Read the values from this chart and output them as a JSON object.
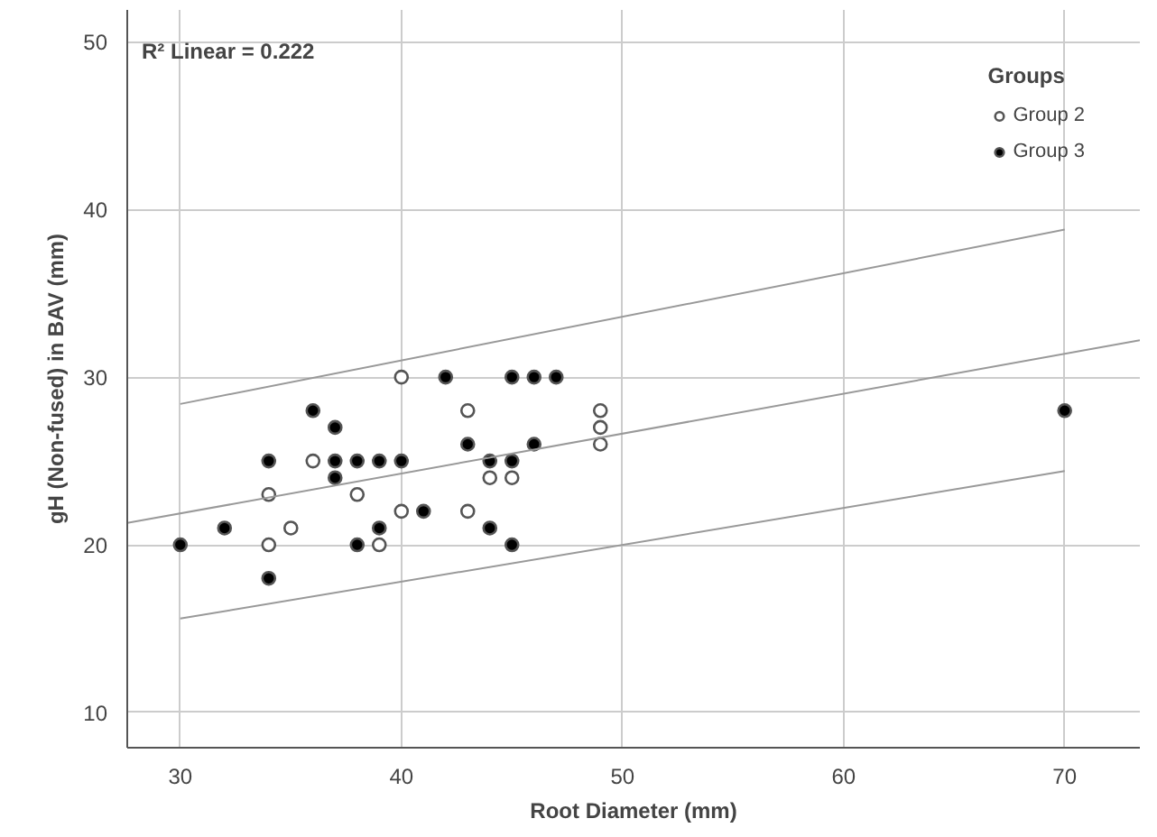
{
  "chart_data": {
    "type": "scatter",
    "xlabel": "Root Diameter (mm)",
    "ylabel": "gH (Non-fused) in BAV (mm)",
    "legend_title": "Groups",
    "legend": "top right",
    "grid": true,
    "annotations": [
      "R² Linear = 0.222"
    ],
    "xlim": [
      27.6,
      73.4
    ],
    "ylim": [
      7.9,
      51.9
    ],
    "xticks": [
      30,
      40,
      50,
      60,
      70
    ],
    "yticks": [
      10,
      20,
      30,
      40,
      50
    ],
    "series": [
      {
        "name": "Group 2",
        "color": "#ffffff",
        "marker": "circle",
        "x": [
          34,
          34,
          35,
          36,
          38,
          39,
          40,
          40,
          43,
          43,
          44,
          45,
          49,
          49,
          49
        ],
        "values": [
          23,
          20,
          21,
          25,
          23,
          20,
          30,
          22,
          28,
          22,
          24,
          24,
          28,
          27,
          26
        ]
      },
      {
        "name": "Group 3",
        "color": "#000000",
        "marker": "circle",
        "x": [
          30,
          32,
          34,
          34,
          36,
          37,
          37,
          37,
          38,
          38,
          39,
          39,
          40,
          41,
          42,
          43,
          44,
          44,
          45,
          45,
          45,
          46,
          46,
          47,
          70
        ],
        "values": [
          20,
          21,
          25,
          18,
          28,
          27,
          25,
          24,
          25,
          20,
          25,
          21,
          25,
          22,
          30,
          26,
          25,
          21,
          30,
          25,
          20,
          30,
          26,
          30,
          28
        ]
      },
      {
        "type": "line",
        "color": "#999999",
        "marker": "none",
        "x": [
          27.6,
          73.4
        ],
        "values": [
          21.3,
          32.2
        ]
      },
      {
        "type": "line",
        "color": "#999999",
        "marker": "none",
        "x": [
          30,
          70
        ],
        "values": [
          28.4,
          38.8
        ]
      },
      {
        "type": "line",
        "color": "#999999",
        "marker": "none",
        "x": [
          30,
          70
        ],
        "values": [
          15.6,
          24.4
        ]
      }
    ]
  }
}
